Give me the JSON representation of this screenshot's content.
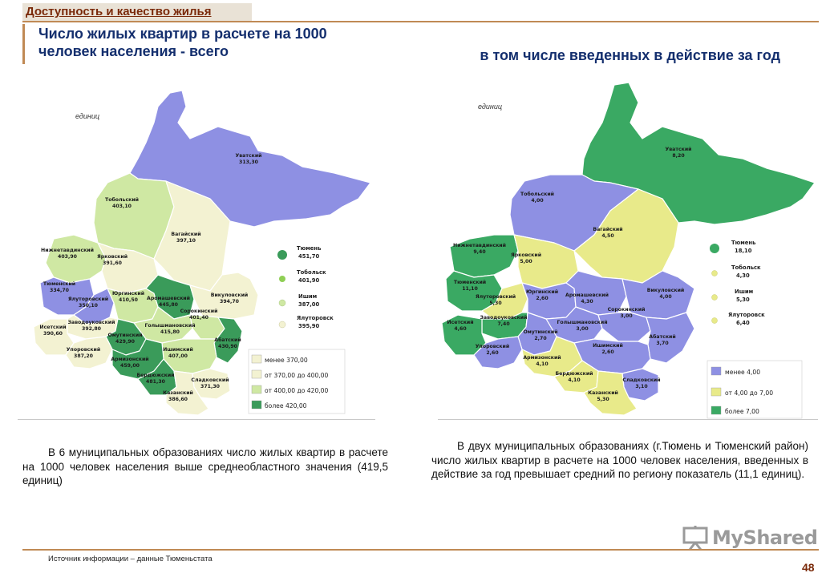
{
  "header": {
    "section_title": "Доступность и качество жилья",
    "left_title": "Число жилых квартир в расчете на 1000 человек населения - всего",
    "right_title": "в том числе введенных в действие за год"
  },
  "colors": {
    "green_dark": "#3a9b5a",
    "green_mid": "#8fcf55",
    "green_light": "#cfe8a3",
    "cream": "#f3f2d2",
    "violet": "#8e90e3",
    "yellow": "#e8ea8a",
    "emerald": "#3aa963"
  },
  "left_map": {
    "units_label": "единиц",
    "regions": {
      "uvatsky": {
        "name": "Уватский",
        "value": "313,30"
      },
      "tobolsky": {
        "name": "Тобольский",
        "value": "403,10"
      },
      "vagaisky": {
        "name": "Вагайский",
        "value": "397,10"
      },
      "nizhnetavdinsky": {
        "name": "Нижнетавдинский",
        "value": "403,90"
      },
      "yarkovsky": {
        "name": "Ярковский",
        "value": "391,60"
      },
      "tyumensky": {
        "name": "Тюменский",
        "value": "334,70"
      },
      "yalutorovsky": {
        "name": "Ялуторовский",
        "value": "350,10"
      },
      "yurginsky": {
        "name": "Юргинский",
        "value": "410,50"
      },
      "aromashevsky": {
        "name": "Аромашевский",
        "value": "445,80"
      },
      "vikulovsky": {
        "name": "Викуловский",
        "value": "394,70"
      },
      "zavodoukovsky": {
        "name": "Заводоуковский",
        "value": "392,80"
      },
      "sorokinsky": {
        "name": "Сорокинский",
        "value": "401,40"
      },
      "golyshmanovsky": {
        "name": "Голышмановский",
        "value": "415,80"
      },
      "isetsky": {
        "name": "Исетский",
        "value": "390,60"
      },
      "omutinsky": {
        "name": "Омутинский",
        "value": "429,90"
      },
      "abatsky": {
        "name": "Абатский",
        "value": "430,90"
      },
      "uporovsky": {
        "name": "Упоровский",
        "value": "387,20"
      },
      "armizonsky": {
        "name": "Армизонский",
        "value": "459,00"
      },
      "ishimsky": {
        "name": "Ишимский",
        "value": "407,00"
      },
      "berdyuzhsky": {
        "name": "Бердюжский",
        "value": "481,30"
      },
      "sladkovsky": {
        "name": "Сладковский",
        "value": "371,30"
      },
      "kazansky": {
        "name": "Казанский",
        "value": "386,60"
      }
    },
    "cities": [
      {
        "name": "Тюмень",
        "value": "451,70"
      },
      {
        "name": "Тобольск",
        "value": "401,90"
      },
      {
        "name": "Ишим",
        "value": "387,00"
      },
      {
        "name": "Ялуторовск",
        "value": "395,90"
      }
    ],
    "legend": [
      "менее 370,00",
      "от 370,00 до 400,00",
      "от 400,00 до 420,00",
      "более 420,00"
    ]
  },
  "right_map": {
    "units_label": "единиц",
    "regions": {
      "uvatsky": {
        "name": "Уватский",
        "value": "8,20"
      },
      "tobolsky": {
        "name": "Тобольский",
        "value": "4,00"
      },
      "vagaisky": {
        "name": "Вагайский",
        "value": "4,50"
      },
      "nizhnetavdinsky": {
        "name": "Нижнетавдинский",
        "value": "9,40"
      },
      "yarkovsky": {
        "name": "Ярковский",
        "value": "5,00"
      },
      "tyumensky": {
        "name": "Тюменский",
        "value": "11,10"
      },
      "yalutorovsky": {
        "name": "Ялуторовский",
        "value": "5,30"
      },
      "yurginsky": {
        "name": "Юргинский",
        "value": "2,60"
      },
      "aromashevsky": {
        "name": "Аромашевский",
        "value": "4,30"
      },
      "vikulovsky": {
        "name": "Викуловский",
        "value": "4,00"
      },
      "zavodoukovsky": {
        "name": "Заводоуковский",
        "value": "7,40"
      },
      "sorokinsky": {
        "name": "Сорокинский",
        "value": "3,00"
      },
      "golyshmanovsky": {
        "name": "Голышмановский",
        "value": "3,00"
      },
      "isetsky": {
        "name": "Исетский",
        "value": "4,60"
      },
      "omutinsky": {
        "name": "Омутинский",
        "value": "2,70"
      },
      "abatsky": {
        "name": "Абатский",
        "value": "3,70"
      },
      "uporovsky": {
        "name": "Упоровский",
        "value": "2,60"
      },
      "armizonsky": {
        "name": "Армизонский",
        "value": "4,10"
      },
      "ishimsky": {
        "name": "Ишимский",
        "value": "2,60"
      },
      "berdyuzhsky": {
        "name": "Бердюжский",
        "value": "4,10"
      },
      "sladkovsky": {
        "name": "Сладковский",
        "value": "3,10"
      },
      "kazansky": {
        "name": "Казанский",
        "value": "5,30"
      }
    },
    "cities": [
      {
        "name": "Тюмень",
        "value": "18,10"
      },
      {
        "name": "Тобольск",
        "value": "4,30"
      },
      {
        "name": "Ишим",
        "value": "5,30"
      },
      {
        "name": "Ялуторовск",
        "value": "6,40"
      }
    ],
    "legend": [
      "менее 4,00",
      "от 4,00 до 7,00",
      "более 7,00"
    ]
  },
  "notes": {
    "left": "В 6 муниципальных образованиях число жилых квартир в расчете на 1000 человек населения выше среднеобластного значения (419,5 единиц)",
    "right": "В двух муниципальных образованиях (г.Тюмень и Тюменский район) число жилых квартир в расчете на 1000 человек населения, введенных в действие за год превышает средний по региону показатель (11,1 единиц)."
  },
  "footer": {
    "source": "Источник информации – данные Тюменьстата",
    "page_number": "48",
    "watermark": "MyShared"
  }
}
